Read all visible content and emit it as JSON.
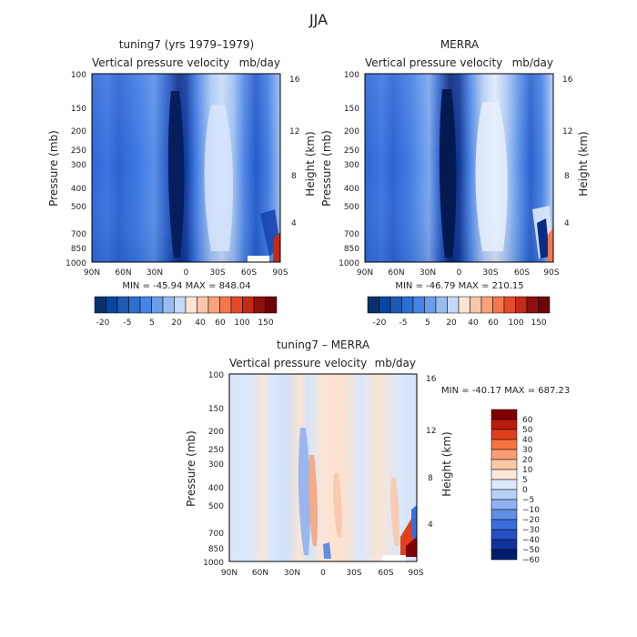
{
  "figure": {
    "title": "JJA"
  },
  "chart_data": [
    {
      "type": "heatmap",
      "title": "tuning7 (yrs 1979–1979)",
      "subtitle_left": "Vertical pressure velocity",
      "subtitle_right": "mb/day",
      "ylabel": "Pressure (mb)",
      "ylabel_right": "Height (km)",
      "x_ticks": [
        "90N",
        "60N",
        "30N",
        "0",
        "30S",
        "60S",
        "90S"
      ],
      "x_range": [
        90,
        -90
      ],
      "y_ticks": [
        "100",
        "150",
        "200",
        "250",
        "300",
        "400",
        "500",
        "700",
        "850",
        "1000"
      ],
      "y_range": [
        100,
        1000
      ],
      "y_scale": "log",
      "y_ticks_right": [
        "16",
        "12",
        "8",
        "4"
      ],
      "stats": "MIN = -45.94   MAX = 848.04",
      "colorbar_labels": [
        "-20",
        "-5",
        "5",
        "20",
        "40",
        "60",
        "100",
        "150"
      ],
      "colorbar_orientation": "horizontal"
    },
    {
      "type": "heatmap",
      "title": "MERRA",
      "subtitle_left": "Vertical pressure velocity",
      "subtitle_right": "mb/day",
      "ylabel": "Pressure (mb)",
      "ylabel_right": "Height (km)",
      "x_ticks": [
        "90N",
        "60N",
        "30N",
        "0",
        "30S",
        "60S",
        "90S"
      ],
      "x_range": [
        90,
        -90
      ],
      "y_ticks": [
        "100",
        "150",
        "200",
        "250",
        "300",
        "400",
        "500",
        "700",
        "850",
        "1000"
      ],
      "y_range": [
        100,
        1000
      ],
      "y_scale": "log",
      "y_ticks_right": [
        "16",
        "12",
        "8",
        "4"
      ],
      "stats": "MIN = -46.79   MAX = 210.15",
      "colorbar_labels": [
        "-20",
        "-5",
        "5",
        "20",
        "40",
        "60",
        "100",
        "150"
      ],
      "colorbar_orientation": "horizontal"
    },
    {
      "type": "heatmap",
      "title": "tuning7 – MERRA",
      "subtitle_left": "Vertical pressure velocity",
      "subtitle_right": "mb/day",
      "ylabel": "Pressure (mb)",
      "ylabel_right": "Height (km)",
      "x_ticks": [
        "90N",
        "60N",
        "30N",
        "0",
        "30S",
        "60S",
        "90S"
      ],
      "x_range": [
        90,
        -90
      ],
      "y_ticks": [
        "100",
        "150",
        "200",
        "250",
        "300",
        "400",
        "500",
        "700",
        "850",
        "1000"
      ],
      "y_range": [
        100,
        1000
      ],
      "y_scale": "log",
      "y_ticks_right": [
        "16",
        "12",
        "8",
        "4"
      ],
      "stats": "MIN = -40.17   MAX = 687.23",
      "colorbar_labels": [
        "60",
        "50",
        "40",
        "30",
        "20",
        "10",
        "5",
        "0",
        "−5",
        "−10",
        "−20",
        "−30",
        "−40",
        "−50",
        "−60"
      ],
      "colorbar_orientation": "vertical"
    }
  ],
  "colors": {
    "seq_scale": [
      "#08306b",
      "#08459e",
      "#1c5ab5",
      "#2d6fd1",
      "#4584e6",
      "#6a9de8",
      "#97bcf0",
      "#c4d9f7",
      "#fbe3d2",
      "#f9c6aa",
      "#f7a37c",
      "#f3774e",
      "#e24a2b",
      "#c42b17",
      "#8f1010",
      "#6b0505"
    ],
    "diff_scale": [
      "#7f0000",
      "#b81b0c",
      "#e0401c",
      "#f6743f",
      "#fb9e74",
      "#fbc7a7",
      "#fde7d8",
      "#dce9fa",
      "#b8cff5",
      "#8fb1ef",
      "#5f8fe6",
      "#3a6edc",
      "#2450c4",
      "#10339e",
      "#031d6e"
    ]
  }
}
